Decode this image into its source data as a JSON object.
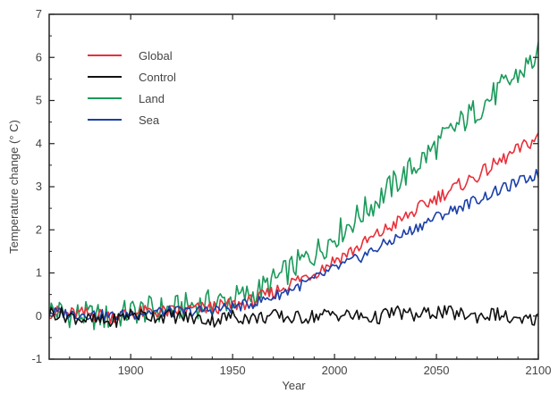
{
  "chart_data": {
    "type": "line",
    "title": "",
    "xlabel": "Year",
    "ylabel": "Temperature change (° C)",
    "xlim": [
      1860,
      2100
    ],
    "ylim": [
      -1,
      7
    ],
    "x_ticks": [
      1900,
      1950,
      2000,
      2050,
      2100
    ],
    "y_ticks": [
      -1,
      0,
      1,
      2,
      3,
      4,
      5,
      6,
      7
    ],
    "grid": false,
    "legend_position": "top-left",
    "x": [
      1860,
      1870,
      1880,
      1890,
      1900,
      1910,
      1920,
      1930,
      1940,
      1950,
      1960,
      1970,
      1980,
      1990,
      2000,
      2010,
      2020,
      2030,
      2040,
      2050,
      2060,
      2070,
      2080,
      2090,
      2100
    ],
    "series": [
      {
        "name": "Global",
        "color": "#e8303a",
        "values": [
          0.1,
          0.05,
          0.05,
          0.0,
          0.05,
          0.1,
          0.1,
          0.15,
          0.2,
          0.25,
          0.35,
          0.55,
          0.8,
          1.0,
          1.3,
          1.55,
          1.85,
          2.15,
          2.45,
          2.75,
          3.0,
          3.25,
          3.55,
          3.85,
          4.15
        ]
      },
      {
        "name": "Control",
        "color": "#111111",
        "values": [
          0.1,
          0.0,
          -0.1,
          -0.15,
          0.05,
          0.0,
          0.0,
          -0.05,
          -0.1,
          0.0,
          -0.05,
          0.0,
          -0.05,
          0.0,
          0.05,
          0.0,
          -0.05,
          0.1,
          0.0,
          0.1,
          0.05,
          0.0,
          0.05,
          -0.15,
          -0.05
        ]
      },
      {
        "name": "Land",
        "color": "#1a9a5a",
        "values": [
          0.15,
          0.05,
          0.0,
          -0.05,
          0.1,
          0.15,
          0.15,
          0.25,
          0.3,
          0.4,
          0.5,
          0.8,
          1.15,
          1.45,
          1.85,
          2.25,
          2.65,
          3.1,
          3.5,
          3.95,
          4.4,
          4.8,
          5.2,
          5.6,
          6.05
        ]
      },
      {
        "name": "Sea",
        "color": "#1a3fa8",
        "values": [
          0.1,
          0.05,
          0.05,
          0.0,
          0.05,
          0.1,
          0.1,
          0.1,
          0.15,
          0.2,
          0.3,
          0.45,
          0.65,
          0.85,
          1.1,
          1.3,
          1.55,
          1.8,
          2.05,
          2.3,
          2.5,
          2.7,
          2.9,
          3.1,
          3.3
        ]
      }
    ]
  }
}
